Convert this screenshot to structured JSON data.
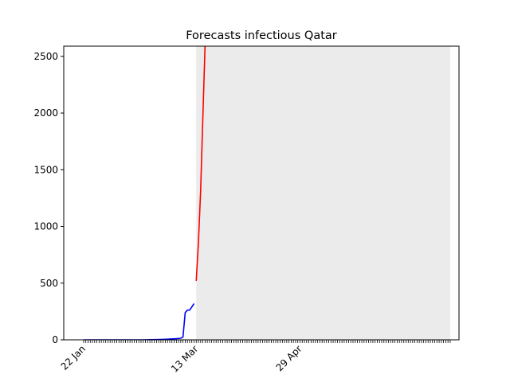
{
  "chart_data": {
    "type": "line",
    "title": "Forecasts infectious Qatar",
    "xlabel": "",
    "ylabel": "",
    "x_tick_labels": [
      "22 Jan",
      "13 Mar",
      "29 Apr"
    ],
    "x_tick_dates": [
      "2020-01-22",
      "2020-03-13",
      "2020-04-29"
    ],
    "xlim": [
      "2020-01-13",
      "2020-07-10"
    ],
    "ylim": [
      0,
      2590
    ],
    "y_ticks": [
      0,
      500,
      1000,
      1500,
      2000,
      2500
    ],
    "forecast_region": {
      "start": "2020-03-13",
      "end": "2020-07-06",
      "color": "#ebebeb"
    },
    "grid": false,
    "legend": "none",
    "series": [
      {
        "color": "#0000ff",
        "points": [
          [
            "2020-01-22",
            0
          ],
          [
            "2020-01-25",
            0
          ],
          [
            "2020-01-28",
            0
          ],
          [
            "2020-01-31",
            0
          ],
          [
            "2020-02-03",
            0
          ],
          [
            "2020-02-06",
            0
          ],
          [
            "2020-02-09",
            0
          ],
          [
            "2020-02-12",
            0
          ],
          [
            "2020-02-15",
            0
          ],
          [
            "2020-02-18",
            0
          ],
          [
            "2020-02-21",
            1
          ],
          [
            "2020-02-24",
            2
          ],
          [
            "2020-02-27",
            4
          ],
          [
            "2020-02-29",
            6
          ],
          [
            "2020-03-02",
            8
          ],
          [
            "2020-03-04",
            10
          ],
          [
            "2020-03-06",
            14
          ],
          [
            "2020-03-07",
            25
          ],
          [
            "2020-03-08",
            240
          ],
          [
            "2020-03-09",
            262
          ],
          [
            "2020-03-10",
            262
          ],
          [
            "2020-03-11",
            290
          ],
          [
            "2020-03-12",
            320
          ]
        ]
      },
      {
        "color": "#ff0000",
        "points": [
          [
            "2020-03-13",
            520
          ],
          [
            "2020-03-14",
            860
          ],
          [
            "2020-03-15",
            1320
          ],
          [
            "2020-03-16",
            1960
          ],
          [
            "2020-03-17",
            2600
          ]
        ]
      }
    ]
  }
}
